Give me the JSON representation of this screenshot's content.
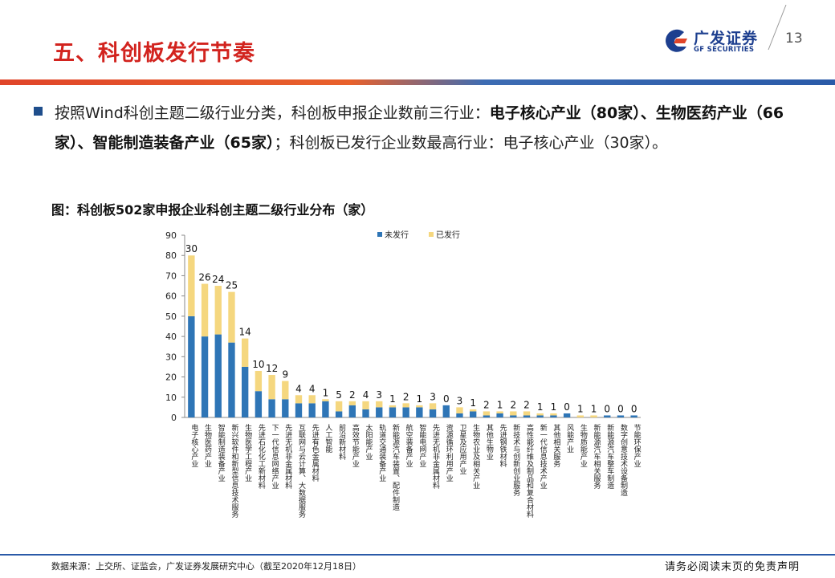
{
  "header": {
    "title": "五、科创板发行节奏",
    "logo_cn": "广发证券",
    "logo_en": "GF SECURITIES",
    "page_number": "13"
  },
  "bullet": {
    "p1": "按照Wind科创主题二级行业分类，科创板申报企业数前三行业：",
    "b1": "电子核心产业（80家）、生物医药产业（66家）、智能制造装备产业（65家）",
    "p2": "；科创板已发行企业数最高行业：电子核心产业（30家）。"
  },
  "figure_title": "图：科创板502家申报企业科创主题二级行业分布（家）",
  "chart_data": {
    "type": "bar",
    "stacked": true,
    "ylim": [
      0,
      90
    ],
    "yticks": [
      0,
      10,
      20,
      30,
      40,
      50,
      60,
      70,
      80,
      90
    ],
    "legend_position": "top",
    "categories": [
      "电子核心产业",
      "生物医药产业",
      "智能制造装备产业",
      "新兴软件和新型信息技术服务",
      "生物医学工程产业",
      "先进石化化工新材料",
      "下一代信息网络产业",
      "先进无机非金属材料",
      "互联网与云计算、大数据服务",
      "先进有色金属材料",
      "人工智能",
      "前沿新材料",
      "高效节能产业",
      "太阳能产业",
      "轨道交通装备产业",
      "新能源汽车装置、配件制造",
      "航空装备产业",
      "智能电网产业",
      "先进无机非金属材料",
      "资源循环利用产业",
      "卫星及应用产业",
      "生物农业及相关产业",
      "其他生物业",
      "先进钢铁材料",
      "新技术与创新创业服务",
      "高性能纤维及制品和复合材料",
      "新一代信息技术产业",
      "其他相关服务",
      "风能产业",
      "生物质能产业",
      "新能源汽车相关服务",
      "新能源汽车整车制造",
      "数字创意技术设备制造",
      "节能环保产业"
    ],
    "series": [
      {
        "name": "未发行",
        "color": "#2e75b6",
        "values": [
          50,
          40,
          41,
          37,
          25,
          13,
          9,
          9,
          7,
          7,
          8,
          3,
          6,
          4,
          5,
          5,
          5,
          5,
          4,
          6,
          2,
          3,
          1,
          2,
          1,
          1,
          1,
          1,
          2,
          0,
          0,
          1,
          1,
          1
        ]
      },
      {
        "name": "已发行",
        "color": "#f5d77f",
        "values": [
          30,
          26,
          24,
          25,
          14,
          10,
          12,
          9,
          4,
          4,
          1,
          5,
          2,
          4,
          3,
          1,
          2,
          1,
          3,
          0,
          3,
          1,
          2,
          1,
          2,
          2,
          1,
          1,
          0,
          1,
          1,
          0,
          0,
          0
        ]
      }
    ],
    "data_labels": [
      30,
      26,
      24,
      25,
      14,
      10,
      12,
      9,
      4,
      4,
      1,
      5,
      2,
      4,
      3,
      1,
      2,
      1,
      3,
      0,
      3,
      1,
      2,
      1,
      2,
      2,
      1,
      1,
      0,
      1,
      1,
      0,
      0,
      0
    ]
  },
  "footer": {
    "source": "数据来源：上交所、证监会，广发证券发展研究中心（截至2020年12月18日）",
    "disclaimer": "请务必阅读末页的免责声明"
  },
  "colors": {
    "title_red": "#d2231e",
    "brand_blue": "#1d3f8f"
  }
}
